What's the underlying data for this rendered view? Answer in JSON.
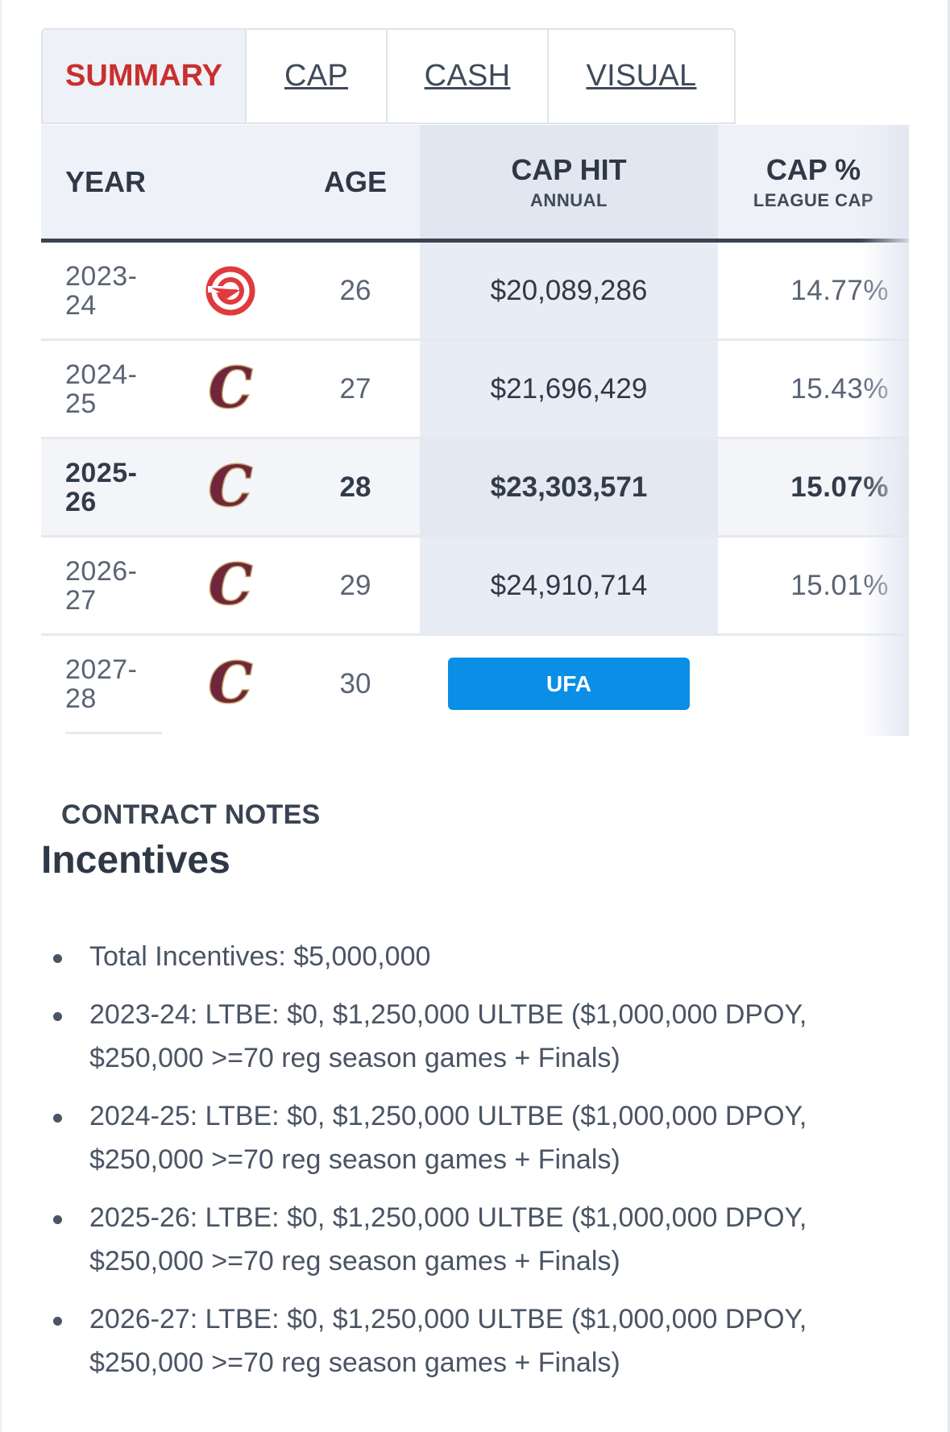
{
  "tabs": [
    {
      "label": "SUMMARY",
      "active": true
    },
    {
      "label": "CAP",
      "active": false
    },
    {
      "label": "CASH",
      "active": false
    },
    {
      "label": "VISUAL",
      "active": false
    }
  ],
  "table": {
    "headers": {
      "year": "YEAR",
      "age": "AGE",
      "cap_hit": "CAP HIT",
      "cap_hit_sub": "ANNUAL",
      "cap_pct": "CAP %",
      "cap_pct_sub": "LEAGUE CAP"
    },
    "rows": [
      {
        "year": "2023-24",
        "team": "hawks-logo",
        "age": "26",
        "cap_hit": "$20,089,286",
        "cap_pct": "14.77%"
      },
      {
        "year": "2024-25",
        "team": "cavaliers-logo",
        "age": "27",
        "cap_hit": "$21,696,429",
        "cap_pct": "15.43%"
      },
      {
        "year": "2025-26",
        "team": "cavaliers-logo",
        "age": "28",
        "cap_hit": "$23,303,571",
        "cap_pct": "15.07%"
      },
      {
        "year": "2026-27",
        "team": "cavaliers-logo",
        "age": "29",
        "cap_hit": "$24,910,714",
        "cap_pct": "15.01%"
      },
      {
        "year": "2027-28",
        "team": "cavaliers-logo",
        "age": "30",
        "status": "UFA"
      }
    ]
  },
  "notes": {
    "label": "CONTRACT NOTES",
    "title": "Incentives",
    "items": [
      "Total Incentives: $5,000,000",
      "2023-24: LTBE: $0, $1,250,000 ULTBE ($1,000,000 DPOY, $250,000 >=70 reg season games + Finals)",
      "2024-25: LTBE: $0, $1,250,000 ULTBE ($1,000,000 DPOY, $250,000 >=70 reg season games + Finals)",
      "2025-26: LTBE: $0, $1,250,000 ULTBE ($1,000,000 DPOY, $250,000 >=70 reg season games + Finals)",
      "2026-27: LTBE: $0, $1,250,000 ULTBE ($1,000,000 DPOY, $250,000 >=70 reg season games + Finals)"
    ]
  },
  "colors": {
    "active_tab": "#c8302e",
    "ufa_button": "#0a8ee6",
    "hawks_red": "#e03a3e",
    "cavs_wine": "#6f263d",
    "cavs_gold": "#c4a565"
  }
}
